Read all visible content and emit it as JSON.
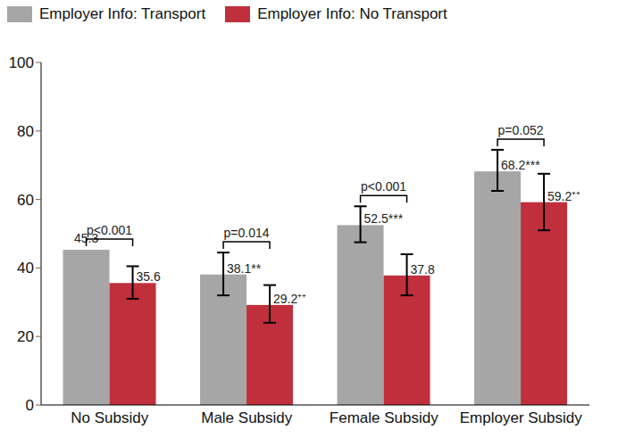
{
  "chart_data": {
    "type": "bar",
    "categories": [
      "No Subsidy",
      "Male Subsidy",
      "Female Subsidy",
      "Employer Subsidy"
    ],
    "series": [
      {
        "name": "Employer Info: Transport",
        "color": "#a6a6a6",
        "values": [
          45.3,
          38.1,
          52.5,
          68.2
        ],
        "value_labels": [
          "45.3",
          "38.1**",
          "52.5***",
          "68.2***"
        ],
        "error_low": [
          null,
          32,
          47.5,
          62.5
        ],
        "error_high": [
          null,
          44.5,
          58,
          74.5
        ]
      },
      {
        "name": "Employer Info: No Transport",
        "color": "#c0303c",
        "values": [
          35.6,
          29.2,
          37.8,
          59.2
        ],
        "value_labels": [
          "35.6",
          "29.2⁺⁺",
          "37.8",
          "59.2⁺⁺"
        ],
        "error_low": [
          31,
          24,
          32,
          51
        ],
        "error_high": [
          40.5,
          35,
          44,
          67.5
        ]
      }
    ],
    "ylim": [
      0,
      100
    ],
    "yticks": [
      0,
      20,
      40,
      60,
      80,
      100
    ],
    "grid": false,
    "legend": "top-left",
    "data_labels": true,
    "annotations": [
      {
        "text": "p<0.001",
        "category": "No Subsidy"
      },
      {
        "text": "p=0.014",
        "category": "Male Subsidy"
      },
      {
        "text": "p<0.001",
        "category": "Female Subsidy"
      },
      {
        "text": "p=0.052",
        "category": "Employer Subsidy"
      }
    ]
  }
}
